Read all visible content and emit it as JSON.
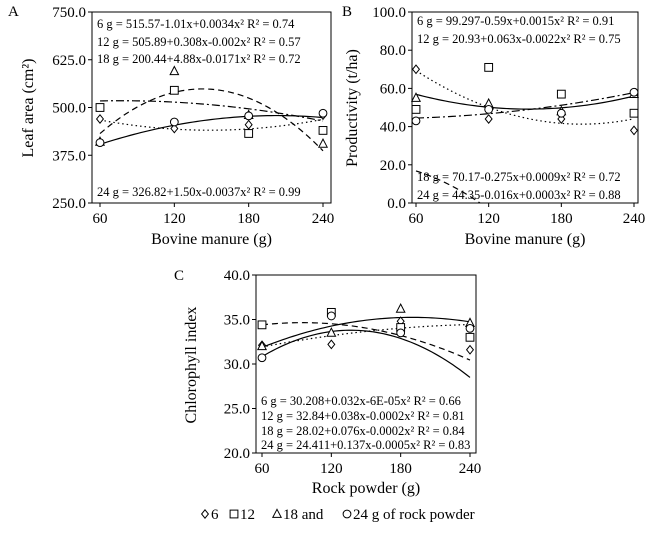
{
  "legend": {
    "items": [
      {
        "symbol": "diamond",
        "label": "6"
      },
      {
        "symbol": "square",
        "label": "12"
      },
      {
        "symbol": "triangle",
        "label": "18 and"
      },
      {
        "symbol": "circle",
        "label": "24 g of rock powder"
      }
    ]
  },
  "chart_data": [
    {
      "type": "scatter",
      "panel_label": "A",
      "xlabel": "Bovine manure (g)",
      "ylabel": "Leaf area (cm²)",
      "x": [
        60,
        120,
        180,
        240
      ],
      "xticks": [
        "60",
        "120",
        "180",
        "240"
      ],
      "ylim": [
        250,
        750
      ],
      "yticks": [
        250,
        375,
        500,
        625,
        750
      ],
      "ytick_labels": [
        "250.0",
        "375.0",
        "500.0",
        "625.0",
        "750.0"
      ],
      "series": [
        {
          "name": "6 g",
          "marker": "diamond",
          "dash": "dotted",
          "values": [
            470,
            445,
            455,
            480
          ],
          "coef": [
            515.57,
            -1.01,
            0.0034
          ],
          "equation": "6 g = 515.57-1.01x+0.0034x² R² = 0.74"
        },
        {
          "name": "12 g",
          "marker": "square",
          "dash": "dashdot",
          "values": [
            500,
            545,
            432,
            440
          ],
          "coef": [
            505.89,
            0.308,
            -0.002
          ],
          "equation": "12 g = 505.89+0.308x-0.002x² R² = 0.57"
        },
        {
          "name": "18 g",
          "marker": "triangle",
          "dash": "dashed",
          "values": [
            410,
            595,
            480,
            405
          ],
          "coef": [
            200.44,
            4.88,
            -0.0171
          ],
          "equation": "18 g = 200.44+4.88x-0.0171x² R² = 0.72"
        },
        {
          "name": "24 g",
          "marker": "circle",
          "dash": "solid",
          "values": [
            408,
            462,
            478,
            485
          ],
          "coef": [
            326.82,
            1.5,
            -0.0037
          ],
          "equation": "24 g = 326.82+1.50x-0.0037x² R² = 0.99"
        }
      ]
    },
    {
      "type": "scatter",
      "panel_label": "B",
      "xlabel": "Bovine manure (g)",
      "ylabel": "Productivity (t/ha)",
      "x": [
        60,
        120,
        180,
        240
      ],
      "xticks": [
        "60",
        "120",
        "180",
        "240"
      ],
      "ylim": [
        0,
        100
      ],
      "yticks": [
        0,
        20,
        40,
        60,
        80,
        100
      ],
      "ytick_labels": [
        "0.0",
        "20.0",
        "40.0",
        "60.0",
        "80.0",
        "100.0"
      ],
      "series": [
        {
          "name": "6 g",
          "marker": "diamond",
          "dash": "dotted",
          "values": [
            70,
            44,
            44,
            38
          ],
          "coef": [
            99.297,
            -0.59,
            0.0015
          ],
          "equation": "6 g = 99.297-0.59x+0.0015x² R² = 0.91"
        },
        {
          "name": "12 g",
          "marker": "square",
          "dash": "dashed",
          "values": [
            49,
            71,
            57,
            47
          ],
          "coef": [
            20.93,
            0.063,
            -0.0022
          ],
          "equation": "12 g = 20.93+0.063x-0.0022x² R² = 0.75"
        },
        {
          "name": "18 g",
          "marker": "triangle",
          "dash": "solid",
          "values": [
            55,
            52,
            48,
            57
          ],
          "coef": [
            70.17,
            -0.275,
            0.0009
          ],
          "equation": "18 g = 70.17-0.275x+0.0009x² R² = 0.72"
        },
        {
          "name": "24 g",
          "marker": "circle",
          "dash": "dashdot",
          "values": [
            43,
            49,
            47,
            58
          ],
          "coef": [
            44.35,
            -0.016,
            0.0003
          ],
          "equation": "24 g = 44.35-0.016x+0.0003x² R² = 0.88"
        }
      ]
    },
    {
      "type": "scatter",
      "panel_label": "C",
      "xlabel": "Rock powder (g)",
      "ylabel": "Chlorophyll index",
      "x": [
        60,
        120,
        180,
        240
      ],
      "xticks": [
        "60",
        "120",
        "180",
        "240"
      ],
      "ylim": [
        20,
        40
      ],
      "yticks": [
        20,
        25,
        30,
        35,
        40
      ],
      "ytick_labels": [
        "20.0",
        "25.0",
        "30.0",
        "35.0",
        "40.0"
      ],
      "series": [
        {
          "name": "6 g",
          "marker": "diamond",
          "dash": "dotted",
          "values": [
            32.1,
            32.2,
            34.8,
            31.6
          ],
          "coef": [
            30.208,
            0.032,
            -6e-05
          ],
          "equation": "6 g = 30.208+0.032x-6E-05x² R² = 0.66"
        },
        {
          "name": "12 g",
          "marker": "square",
          "dash": "dashed",
          "values": [
            34.4,
            35.8,
            34.1,
            33.0
          ],
          "coef": [
            32.84,
            0.038,
            -0.0002
          ],
          "equation": "12 g = 32.84+0.038x-0.0002x² R² = 0.81"
        },
        {
          "name": "18 g",
          "marker": "triangle",
          "dash": "solid",
          "values": [
            32.0,
            33.5,
            36.2,
            34.6
          ],
          "coef": [
            28.02,
            0.076,
            -0.0002
          ],
          "equation": "18 g = 28.02+0.076x-0.0002x² R² = 0.84"
        },
        {
          "name": "24 g",
          "marker": "circle",
          "dash": "solid",
          "values": [
            30.7,
            35.4,
            33.5,
            34.0
          ],
          "coef": [
            24.411,
            0.137,
            -0.0005
          ],
          "equation": "24 g = 24.411+0.137x-0.0005x² R² = 0.83"
        }
      ]
    }
  ]
}
